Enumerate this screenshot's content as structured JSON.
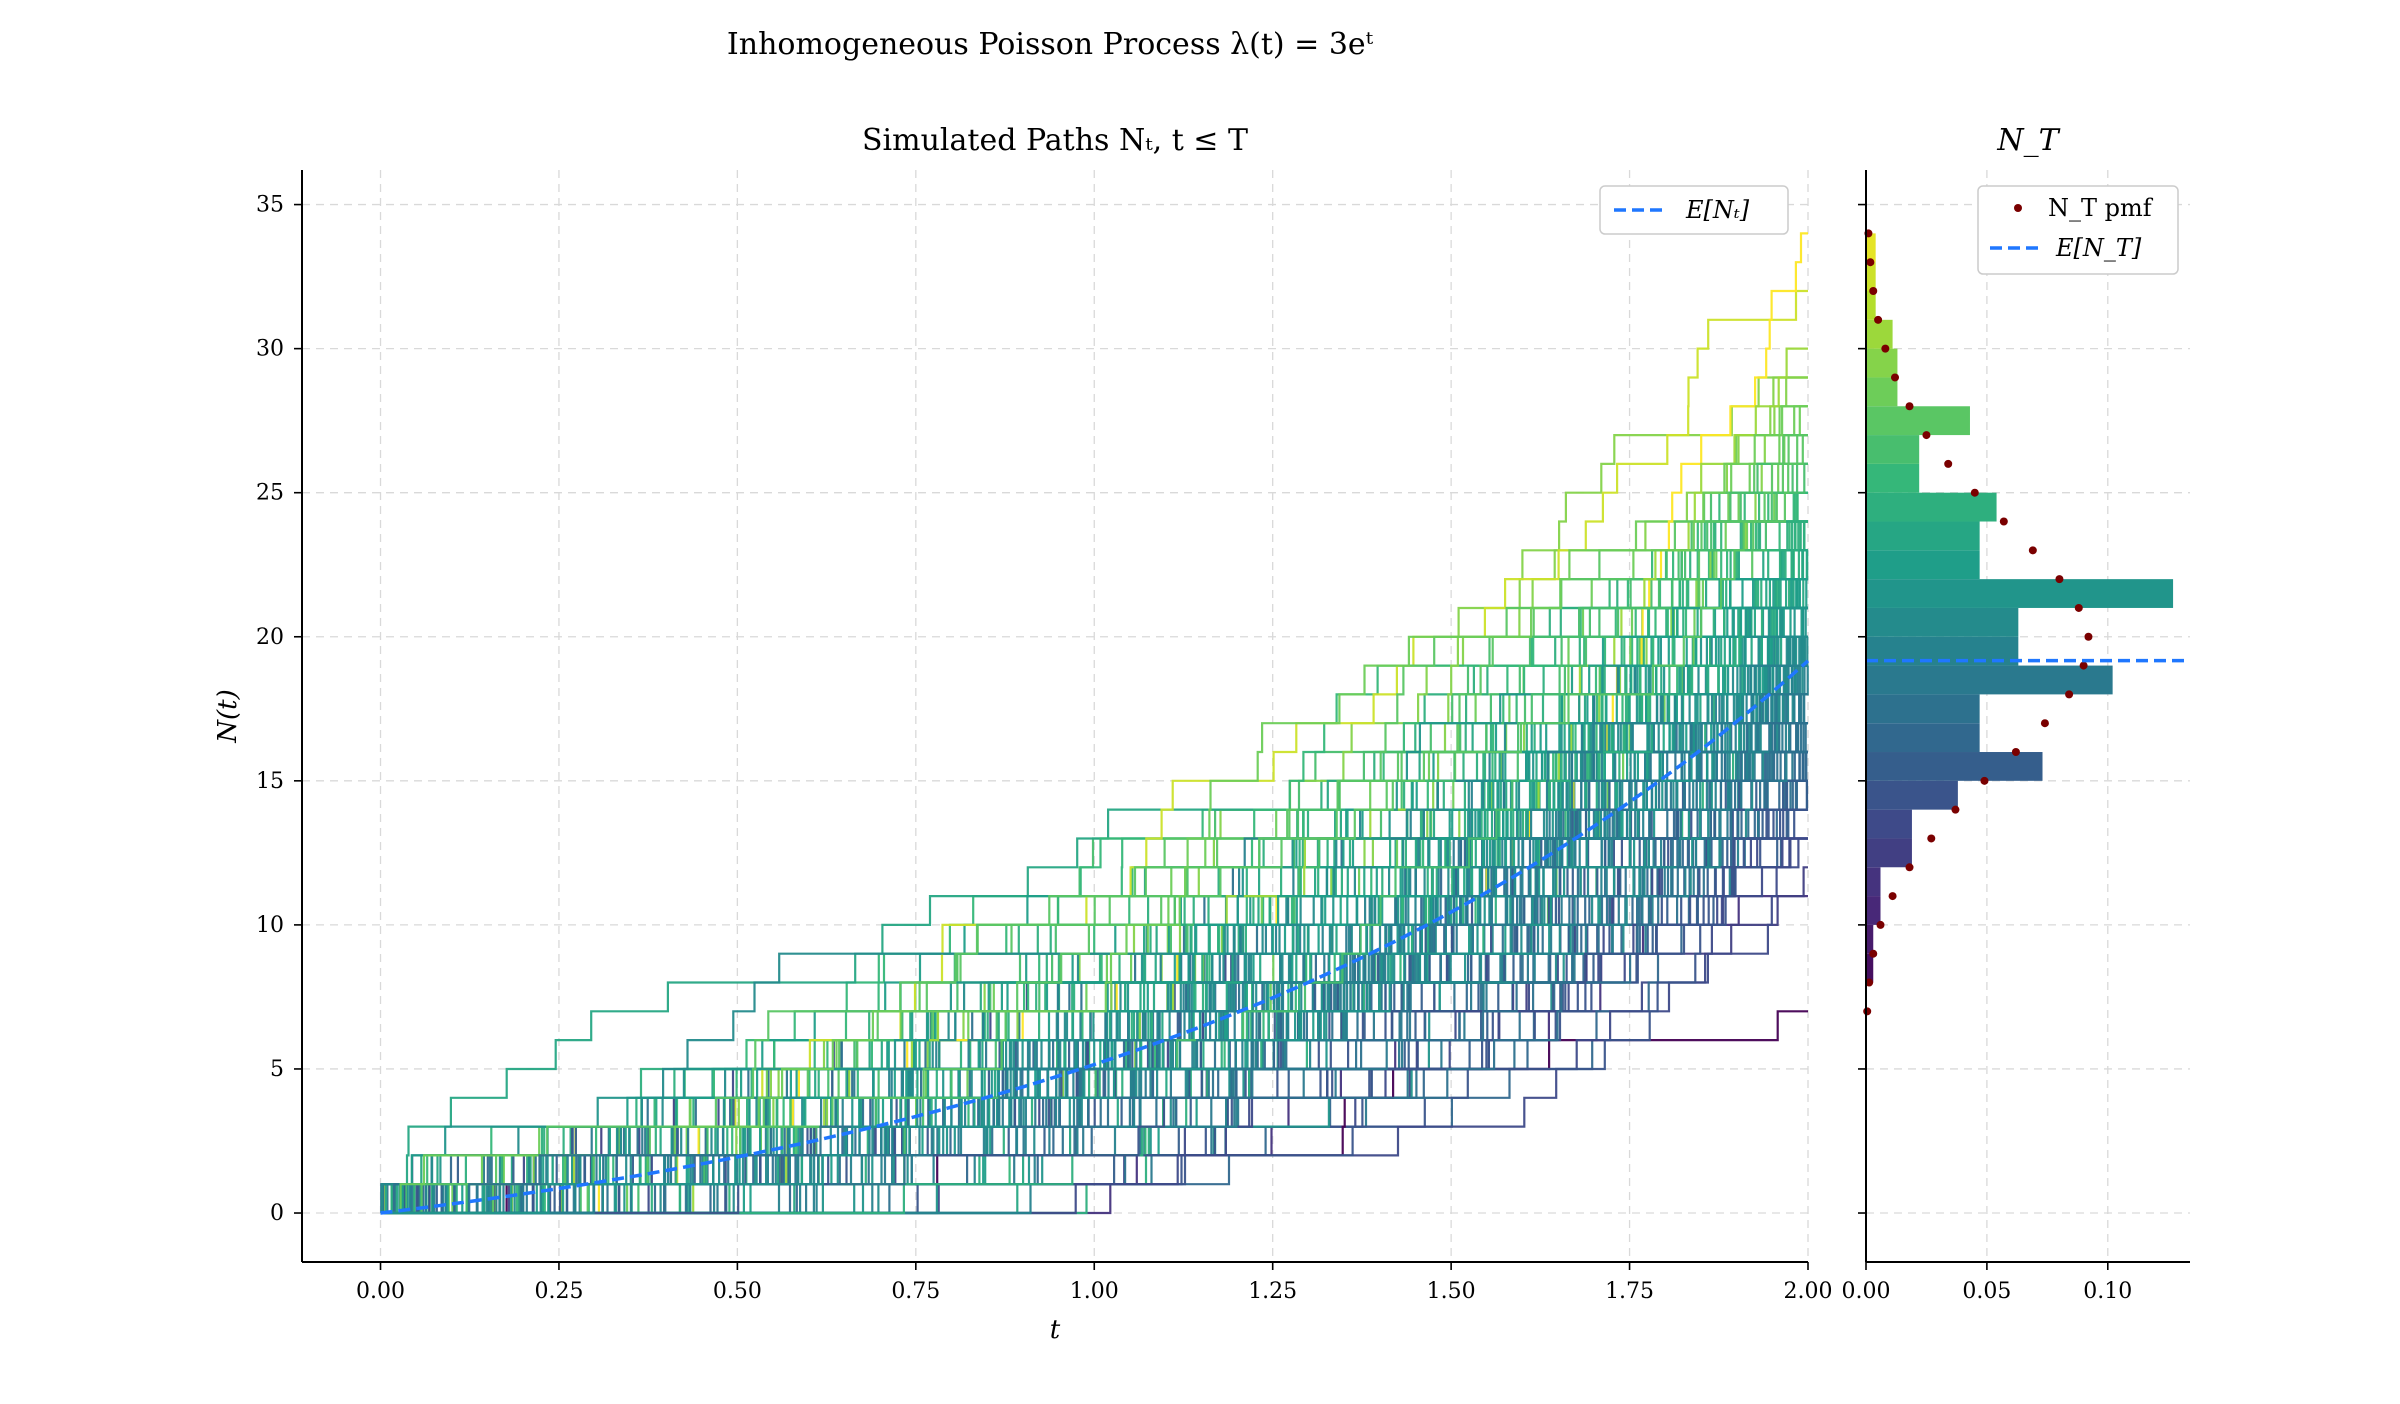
{
  "suptitle": "Inhomogeneous Poisson Process λ(t) = 3eᵗ",
  "chart_data": [
    {
      "type": "line",
      "title": "Simulated Paths Nₜ, t ≤ T",
      "xlabel": "t",
      "ylabel": "N(t)",
      "xlim": [
        -0.11,
        2.0
      ],
      "ylim": [
        -1.7,
        36.2
      ],
      "xticks": [
        "0.00",
        "0.25",
        "0.50",
        "0.75",
        "1.00",
        "1.25",
        "1.50",
        "1.75",
        "2.00"
      ],
      "yticks": [
        "0",
        "5",
        "10",
        "15",
        "20",
        "25",
        "30",
        "35"
      ],
      "grid": true,
      "legend_position": "top-right",
      "series": [
        {
          "name": "E[Nₜ]",
          "style": "dashed",
          "color": "#1f77ff",
          "function": "3(e^t - 1)"
        }
      ],
      "simulated_paths": {
        "count": 200,
        "colormap": "viridis",
        "intensity": "3e^t",
        "T": 2.0
      }
    },
    {
      "type": "bar",
      "orientation": "horizontal",
      "title": "N_T",
      "xlim": [
        0,
        0.134
      ],
      "ylim": [
        -1.7,
        36.2
      ],
      "xticks": [
        "0.00",
        "0.05",
        "0.10"
      ],
      "grid": true,
      "legend_position": "top-right",
      "histogram_bins": [
        {
          "y": [
            7,
            8
          ],
          "density": 0.0
        },
        {
          "y": [
            8,
            9
          ],
          "density": 0.003
        },
        {
          "y": [
            9,
            10
          ],
          "density": 0.003
        },
        {
          "y": [
            10,
            11
          ],
          "density": 0.006
        },
        {
          "y": [
            11,
            12
          ],
          "density": 0.006
        },
        {
          "y": [
            12,
            13
          ],
          "density": 0.019
        },
        {
          "y": [
            13,
            14
          ],
          "density": 0.019
        },
        {
          "y": [
            14,
            15
          ],
          "density": 0.038
        },
        {
          "y": [
            15,
            16
          ],
          "density": 0.073
        },
        {
          "y": [
            16,
            17
          ],
          "density": 0.047
        },
        {
          "y": [
            17,
            18
          ],
          "density": 0.047
        },
        {
          "y": [
            18,
            19
          ],
          "density": 0.102
        },
        {
          "y": [
            19,
            20
          ],
          "density": 0.063
        },
        {
          "y": [
            20,
            21
          ],
          "density": 0.063
        },
        {
          "y": [
            21,
            22
          ],
          "density": 0.127
        },
        {
          "y": [
            22,
            23
          ],
          "density": 0.047
        },
        {
          "y": [
            23,
            24
          ],
          "density": 0.047
        },
        {
          "y": [
            24,
            25
          ],
          "density": 0.054
        },
        {
          "y": [
            25,
            26
          ],
          "density": 0.022
        },
        {
          "y": [
            26,
            27
          ],
          "density": 0.022
        },
        {
          "y": [
            27,
            28
          ],
          "density": 0.043
        },
        {
          "y": [
            28,
            29
          ],
          "density": 0.013
        },
        {
          "y": [
            29,
            30
          ],
          "density": 0.013
        },
        {
          "y": [
            30,
            31
          ],
          "density": 0.011
        },
        {
          "y": [
            31,
            32
          ],
          "density": 0.004
        },
        {
          "y": [
            32,
            33
          ],
          "density": 0.004
        },
        {
          "y": [
            33,
            34
          ],
          "density": 0.004
        }
      ],
      "series": [
        {
          "name": "N_T pmf",
          "style": "dots",
          "color": "#7a0000",
          "points": [
            [
              7,
              0.0005
            ],
            [
              8,
              0.0013
            ],
            [
              9,
              0.003
            ],
            [
              10,
              0.006
            ],
            [
              11,
              0.011
            ],
            [
              12,
              0.018
            ],
            [
              13,
              0.027
            ],
            [
              14,
              0.037
            ],
            [
              15,
              0.049
            ],
            [
              16,
              0.062
            ],
            [
              17,
              0.074
            ],
            [
              18,
              0.084
            ],
            [
              19,
              0.09
            ],
            [
              20,
              0.092
            ],
            [
              21,
              0.088
            ],
            [
              22,
              0.08
            ],
            [
              23,
              0.069
            ],
            [
              24,
              0.057
            ],
            [
              25,
              0.045
            ],
            [
              26,
              0.034
            ],
            [
              27,
              0.025
            ],
            [
              28,
              0.018
            ],
            [
              29,
              0.012
            ],
            [
              30,
              0.008
            ],
            [
              31,
              0.005
            ],
            [
              32,
              0.003
            ],
            [
              33,
              0.0018
            ],
            [
              34,
              0.001
            ]
          ]
        },
        {
          "name": "E[N_T]",
          "style": "dashed",
          "color": "#1f77ff",
          "value": 19.17
        }
      ]
    }
  ]
}
